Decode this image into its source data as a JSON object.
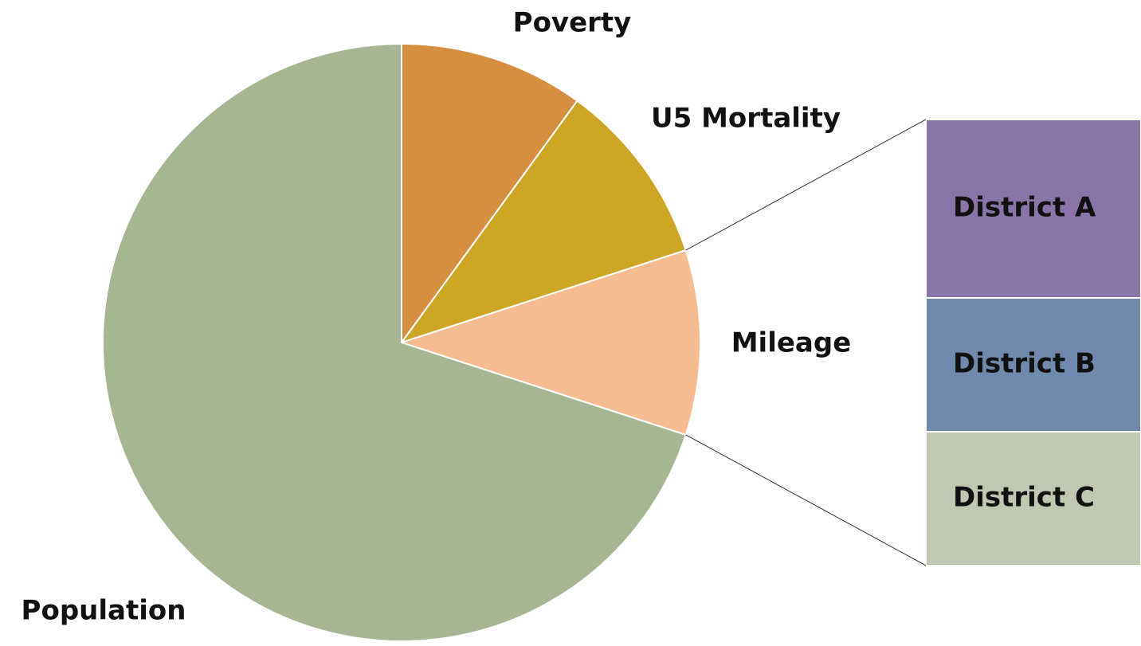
{
  "chart_data": {
    "type": "pie",
    "categories": [
      "Poverty",
      "U5 Mortality",
      "Mileage",
      "Population"
    ],
    "values": [
      10,
      10,
      10,
      70
    ],
    "colors": [
      "#d68f40",
      "#cca624",
      "#f5bb91",
      "#a6b592"
    ],
    "exploded_slice": 2,
    "breakdown": {
      "categories": [
        "District A",
        "District B",
        "District C"
      ],
      "values": [
        4,
        3,
        3
      ],
      "colors": [
        "#8a75a8",
        "#7189ad",
        "#c0c8b1"
      ]
    }
  }
}
